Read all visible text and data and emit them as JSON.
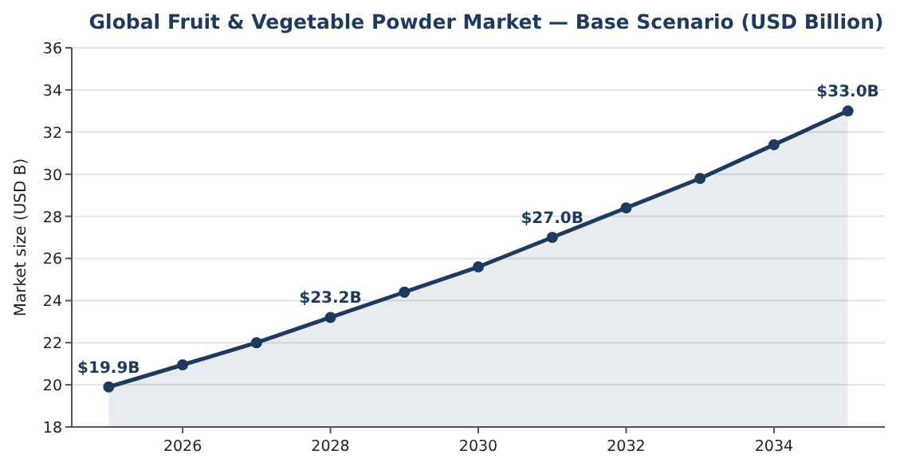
{
  "chart_data": {
    "type": "area",
    "title": "Global Fruit & Vegetable Powder Market — Base Scenario (USD Billion)",
    "ylabel": "Market size (USD B)",
    "x": [
      2025,
      2026,
      2027,
      2028,
      2029,
      2030,
      2031,
      2032,
      2033,
      2034,
      2035
    ],
    "series": [
      {
        "color": "#1f3a5f",
        "values": [
          19.9,
          20.95,
          22.0,
          23.2,
          24.4,
          25.6,
          27.0,
          28.4,
          29.8,
          31.4,
          33.0
        ],
        "value_labels": [
          "$19.9B",
          null,
          null,
          "$23.2B",
          null,
          null,
          "$27.0B",
          null,
          null,
          null,
          "$33.0B"
        ]
      }
    ],
    "xlim": [
      2024.5,
      2035.5
    ],
    "xticks": [
      2026,
      2028,
      2030,
      2032,
      2034
    ],
    "ylim": [
      18,
      36
    ],
    "yticks": [
      18,
      20,
      22,
      24,
      26,
      28,
      30,
      32,
      34,
      36
    ],
    "grid": "y",
    "marker": "circle",
    "line_style": "solid"
  }
}
